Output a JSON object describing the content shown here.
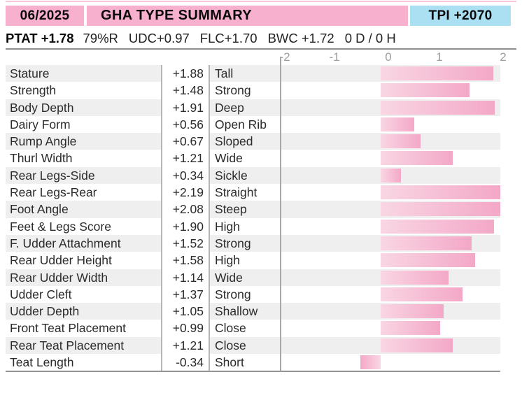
{
  "page": {
    "accent_pink": "#f7b0cd",
    "accent_blue": "#abdff2",
    "stripe_gray": "#efefef",
    "bar_color_light": "#f9d6e3",
    "bar_color_dark": "#f3a8c7"
  },
  "header": {
    "date": "06/2025",
    "title": "GHA TYPE SUMMARY",
    "tpi": "TPI +2070"
  },
  "stats": {
    "ptat": "PTAT +1.78",
    "reliability": "79%R",
    "udc": "UDC+0.97",
    "flc": "FLC+1.70",
    "bwc": "BWC +1.72",
    "daughters_herds": "0 D /  0 H"
  },
  "chart_data": {
    "type": "bar",
    "orientation": "horizontal",
    "title": "GHA TYPE SUMMARY",
    "xlim": [
      -2,
      2
    ],
    "x_ticks": [
      "-2",
      "-1",
      "0",
      "1",
      "2"
    ],
    "grid": false,
    "legend": false,
    "rows": [
      {
        "trait": "Stature",
        "value_label": "+1.88",
        "value": 1.88,
        "descriptor": "Tall"
      },
      {
        "trait": "Strength",
        "value_label": "+1.48",
        "value": 1.48,
        "descriptor": "Strong"
      },
      {
        "trait": "Body Depth",
        "value_label": "+1.91",
        "value": 1.91,
        "descriptor": "Deep"
      },
      {
        "trait": "Dairy Form",
        "value_label": "+0.56",
        "value": 0.56,
        "descriptor": "Open Rib"
      },
      {
        "trait": "Rump Angle",
        "value_label": "+0.67",
        "value": 0.67,
        "descriptor": "Sloped"
      },
      {
        "trait": "Thurl Width",
        "value_label": "+1.21",
        "value": 1.21,
        "descriptor": "Wide"
      },
      {
        "trait": "Rear Legs-Side",
        "value_label": "+0.34",
        "value": 0.34,
        "descriptor": "Sickle"
      },
      {
        "trait": "Rear Legs-Rear",
        "value_label": "+2.19",
        "value": 2.19,
        "descriptor": "Straight"
      },
      {
        "trait": "Foot Angle",
        "value_label": "+2.08",
        "value": 2.08,
        "descriptor": "Steep"
      },
      {
        "trait": "Feet & Legs Score",
        "value_label": "+1.90",
        "value": 1.9,
        "descriptor": "High"
      },
      {
        "trait": "F. Udder Attachment",
        "value_label": "+1.52",
        "value": 1.52,
        "descriptor": "Strong"
      },
      {
        "trait": "Rear Udder Height",
        "value_label": "+1.58",
        "value": 1.58,
        "descriptor": "High"
      },
      {
        "trait": "Rear Udder Width",
        "value_label": "+1.14",
        "value": 1.14,
        "descriptor": "Wide"
      },
      {
        "trait": "Udder Cleft",
        "value_label": "+1.37",
        "value": 1.37,
        "descriptor": "Strong"
      },
      {
        "trait": "Udder Depth",
        "value_label": "+1.05",
        "value": 1.05,
        "descriptor": "Shallow"
      },
      {
        "trait": "Front Teat Placement",
        "value_label": "+0.99",
        "value": 0.99,
        "descriptor": "Close"
      },
      {
        "trait": "Rear Teat Placement",
        "value_label": "+1.21",
        "value": 1.21,
        "descriptor": "Close"
      },
      {
        "trait": "Teat Length",
        "value_label": "-0.34",
        "value": -0.34,
        "descriptor": "Short"
      }
    ]
  }
}
